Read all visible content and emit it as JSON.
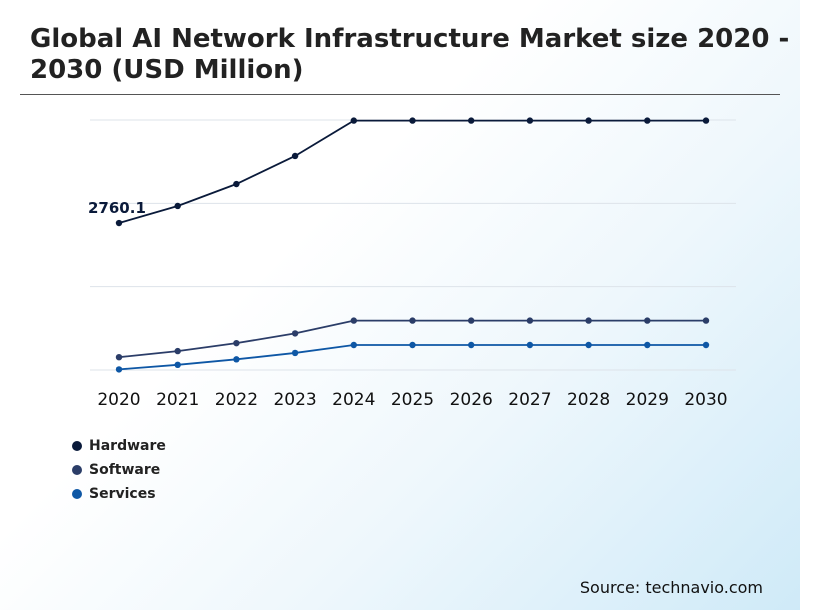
{
  "title": "Global AI Network Infrastructure Market size 2020 - 2030 (USD Million)",
  "source": "Source: technavio.com",
  "chart_data": {
    "type": "line",
    "x": [
      "2020",
      "2021",
      "2022",
      "2023",
      "2024",
      "2025",
      "2026",
      "2027",
      "2028",
      "2029",
      "2030"
    ],
    "grid": true,
    "legend_position": "bottom-left",
    "series": [
      {
        "name": "Hardware",
        "color": "#0a1a3a",
        "values": [
          2760.1,
          3040,
          3400,
          3860,
          4440,
          4440,
          4440,
          4440,
          4440,
          4440,
          4440
        ]
      },
      {
        "name": "Software",
        "color": "#2b3d68",
        "values": [
          560,
          660,
          790,
          950,
          1160,
          1160,
          1160,
          1160,
          1160,
          1160,
          1160
        ]
      },
      {
        "name": "Services",
        "color": "#0e57a5",
        "values": [
          360,
          435,
          525,
          630,
          760,
          760,
          760,
          760,
          760,
          760,
          760
        ]
      }
    ],
    "annotations": [
      {
        "series": "Hardware",
        "x": "2020",
        "text": "2760.1"
      }
    ],
    "ylim": [
      350,
      4450
    ]
  }
}
